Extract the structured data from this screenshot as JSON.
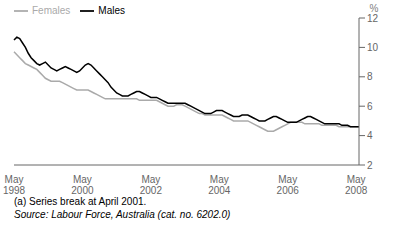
{
  "chart_data": {
    "type": "line",
    "ylabel": "%",
    "annotations": [
      "(a) Series break at April 2001.",
      "Source: Labour Force, Australia (cat. no. 6202.0)"
    ],
    "categories": [
      "May\n1998",
      null,
      null,
      null,
      null,
      null,
      null,
      null,
      null,
      null,
      null,
      null,
      null,
      null,
      null,
      null,
      null,
      null,
      null,
      null,
      null,
      null,
      null,
      null,
      "May\n2000",
      null,
      null,
      null,
      null,
      null,
      null,
      null,
      null,
      null,
      null,
      null,
      null,
      null,
      null,
      null,
      null,
      null,
      null,
      null,
      null,
      null,
      null,
      null,
      "May\n2002",
      null,
      null,
      null,
      null,
      null,
      null,
      null,
      null,
      null,
      null,
      null,
      null,
      null,
      null,
      null,
      null,
      null,
      null,
      null,
      null,
      null,
      null,
      null,
      "May\n2004",
      null,
      null,
      null,
      null,
      null,
      null,
      null,
      null,
      null,
      null,
      null,
      null,
      null,
      null,
      null,
      null,
      null,
      null,
      null,
      null,
      null,
      null,
      null,
      "May\n2006",
      null,
      null,
      null,
      null,
      null,
      null,
      null,
      null,
      null,
      null,
      null,
      null,
      null,
      null,
      null,
      null,
      null,
      null,
      null,
      null,
      null,
      null,
      null,
      "May\n2008",
      null
    ],
    "series": [
      {
        "name": "Males",
        "color": "#000000",
        "values": [
          10.5,
          10.7,
          10.6,
          10.3,
          10.0,
          9.6,
          9.3,
          9.1,
          8.9,
          8.8,
          8.9,
          9.0,
          8.8,
          8.6,
          8.5,
          8.4,
          8.5,
          8.6,
          8.7,
          8.6,
          8.5,
          8.4,
          8.3,
          8.4,
          8.6,
          8.8,
          8.9,
          8.8,
          8.6,
          8.4,
          8.2,
          8.0,
          7.8,
          7.6,
          7.3,
          7.1,
          6.9,
          6.8,
          6.7,
          6.7,
          6.7,
          6.8,
          6.9,
          7.0,
          7.0,
          6.9,
          6.8,
          6.7,
          6.6,
          6.6,
          6.6,
          6.5,
          6.4,
          6.3,
          6.2,
          6.2,
          6.2,
          6.2,
          6.2,
          6.2,
          6.2,
          6.1,
          6.0,
          5.9,
          5.8,
          5.7,
          5.6,
          5.5,
          5.5,
          5.5,
          5.6,
          5.7,
          5.7,
          5.7,
          5.6,
          5.5,
          5.4,
          5.3,
          5.3,
          5.3,
          5.4,
          5.4,
          5.4,
          5.3,
          5.2,
          5.1,
          5.0,
          5.0,
          5.0,
          5.1,
          5.2,
          5.3,
          5.3,
          5.2,
          5.1,
          5.0,
          4.9,
          4.9,
          4.9,
          4.9,
          5.0,
          5.1,
          5.2,
          5.3,
          5.3,
          5.2,
          5.1,
          5.0,
          4.9,
          4.8,
          4.8,
          4.8,
          4.8,
          4.8,
          4.8,
          4.7,
          4.7,
          4.7,
          4.6,
          4.6,
          4.6,
          4.6
        ]
      },
      {
        "name": "Females",
        "color": "#aaaaaa",
        "values": [
          9.7,
          9.5,
          9.3,
          9.1,
          8.9,
          8.8,
          8.7,
          8.6,
          8.5,
          8.3,
          8.1,
          7.9,
          7.8,
          7.7,
          7.7,
          7.7,
          7.7,
          7.6,
          7.5,
          7.4,
          7.3,
          7.2,
          7.1,
          7.1,
          7.1,
          7.1,
          7.1,
          7.0,
          6.9,
          6.8,
          6.7,
          6.6,
          6.5,
          6.5,
          6.5,
          6.5,
          6.5,
          6.5,
          6.5,
          6.5,
          6.5,
          6.5,
          6.5,
          6.5,
          6.4,
          6.4,
          6.4,
          6.4,
          6.4,
          6.4,
          6.4,
          6.3,
          6.2,
          6.1,
          6.0,
          6.0,
          6.0,
          6.1,
          6.1,
          6.1,
          6.0,
          5.9,
          5.8,
          5.7,
          5.6,
          5.5,
          5.5,
          5.4,
          5.4,
          5.4,
          5.4,
          5.4,
          5.4,
          5.4,
          5.3,
          5.2,
          5.1,
          5.0,
          5.0,
          5.0,
          5.0,
          5.0,
          5.0,
          4.9,
          4.8,
          4.7,
          4.6,
          4.5,
          4.4,
          4.3,
          4.3,
          4.3,
          4.4,
          4.5,
          4.6,
          4.7,
          4.8,
          4.9,
          4.9,
          4.9,
          4.9,
          4.9,
          4.8,
          4.8,
          4.8,
          4.8,
          4.8,
          4.8,
          4.7,
          4.7,
          4.7,
          4.7,
          4.7,
          4.7,
          4.6,
          4.6,
          4.6,
          4.6,
          4.6,
          4.6,
          4.6,
          4.6
        ]
      }
    ],
    "ylim": [
      2,
      12
    ],
    "yticks": [
      2,
      4,
      6,
      8,
      10,
      12
    ],
    "grid": false,
    "legend": "upper left"
  }
}
